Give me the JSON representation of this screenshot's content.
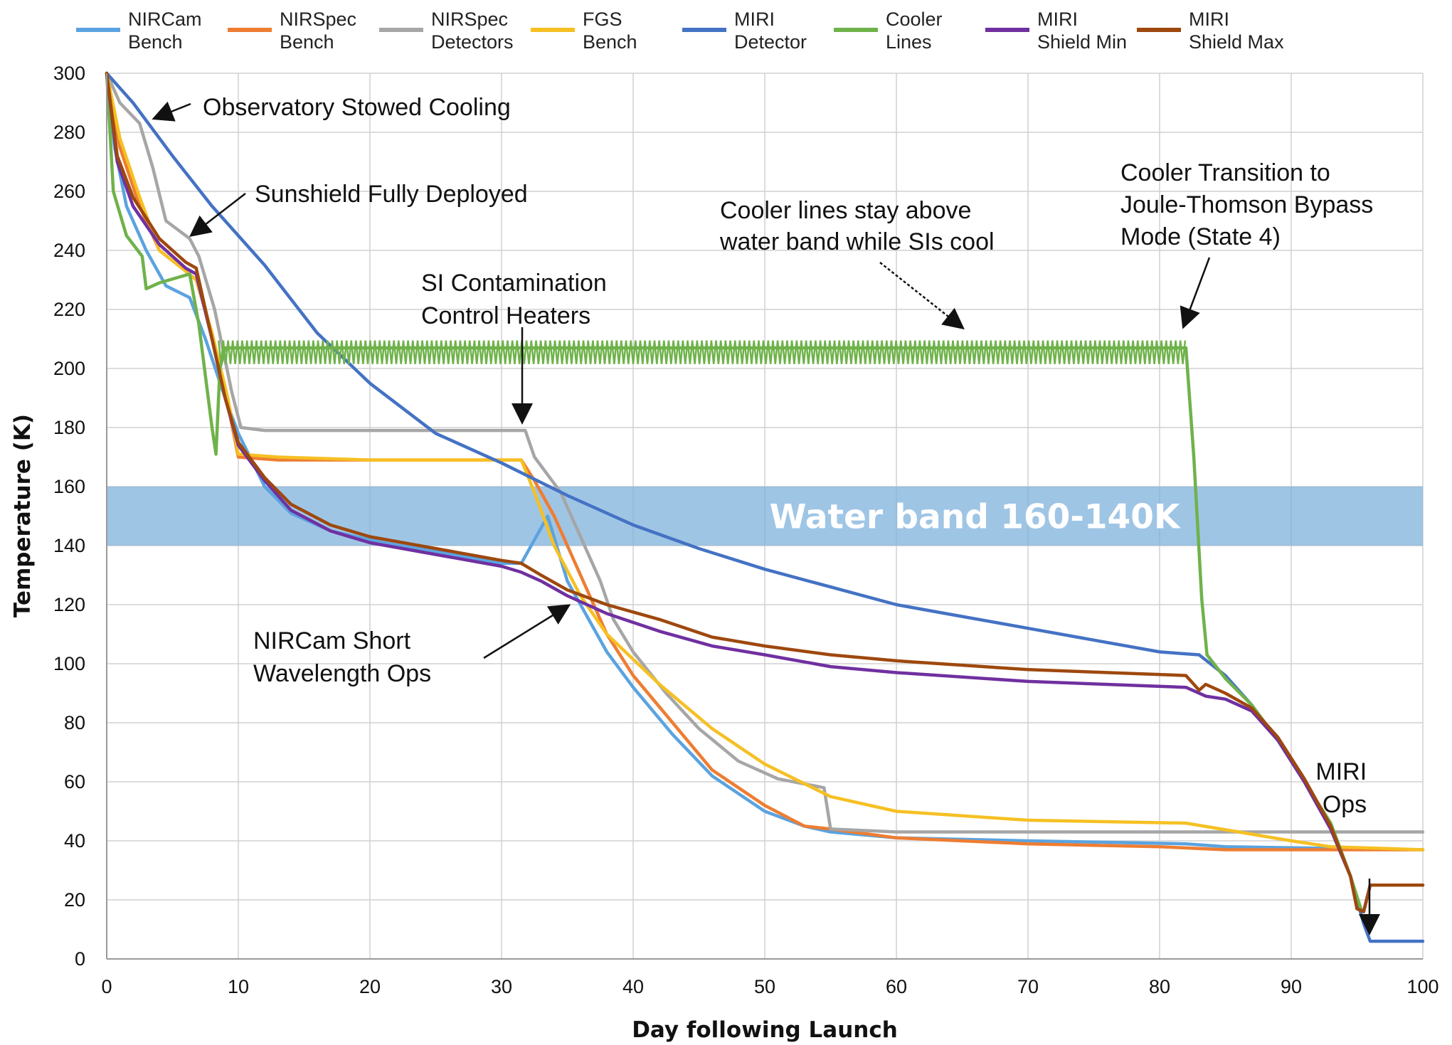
{
  "chart_data": {
    "type": "line",
    "xlabel": "Day following Launch",
    "ylabel": "Temperature (K)",
    "xlim": [
      0,
      100
    ],
    "ylim": [
      0,
      300
    ],
    "x_ticks": [
      0,
      10,
      20,
      30,
      40,
      50,
      60,
      70,
      80,
      90,
      100
    ],
    "y_ticks": [
      0,
      20,
      40,
      60,
      80,
      100,
      120,
      140,
      160,
      180,
      200,
      220,
      240,
      260,
      280,
      300
    ],
    "grid": true,
    "legend_position": "top",
    "band": {
      "y_low": 140,
      "y_high": 160,
      "label": "Water band 160-140K",
      "color": "#7fb1dc"
    },
    "series": [
      {
        "name_line1": "NIRCam",
        "name_line2": "Bench",
        "color": "#5ba3e0",
        "points": [
          [
            0,
            300
          ],
          [
            0.6,
            275
          ],
          [
            1.5,
            255
          ],
          [
            3,
            240
          ],
          [
            4.5,
            228
          ],
          [
            6.3,
            224
          ],
          [
            7.5,
            210
          ],
          [
            9,
            190
          ],
          [
            10,
            178
          ],
          [
            12,
            160
          ],
          [
            14,
            151
          ],
          [
            17,
            145
          ],
          [
            21,
            141
          ],
          [
            25,
            138
          ],
          [
            30,
            134
          ],
          [
            31.5,
            134
          ],
          [
            33.5,
            150
          ],
          [
            35,
            128
          ],
          [
            36,
            120
          ],
          [
            38,
            104
          ],
          [
            40,
            92
          ],
          [
            43,
            76
          ],
          [
            46,
            62
          ],
          [
            50,
            50
          ],
          [
            53,
            45
          ],
          [
            55,
            43
          ],
          [
            60,
            41
          ],
          [
            70,
            40
          ],
          [
            82,
            39
          ],
          [
            85,
            38
          ],
          [
            100,
            37
          ]
        ]
      },
      {
        "name_line1": "NIRSpec",
        "name_line2": "Bench",
        "color": "#ee7d32",
        "points": [
          [
            0,
            300
          ],
          [
            1,
            275
          ],
          [
            2.5,
            255
          ],
          [
            4,
            240
          ],
          [
            6,
            233
          ],
          [
            6.8,
            230
          ],
          [
            8,
            212
          ],
          [
            9.2,
            188
          ],
          [
            10,
            170
          ],
          [
            13,
            169
          ],
          [
            20,
            169
          ],
          [
            31.5,
            169
          ],
          [
            32.5,
            162
          ],
          [
            34,
            150
          ],
          [
            36,
            130
          ],
          [
            38,
            110
          ],
          [
            40,
            96
          ],
          [
            43,
            80
          ],
          [
            46,
            64
          ],
          [
            50,
            52
          ],
          [
            53,
            45
          ],
          [
            55,
            44
          ],
          [
            60,
            41
          ],
          [
            70,
            39
          ],
          [
            80,
            38
          ],
          [
            85,
            37
          ],
          [
            100,
            37
          ]
        ]
      },
      {
        "name_line1": "NIRSpec",
        "name_line2": "Detectors",
        "color": "#a6a6a6",
        "points": [
          [
            0,
            300
          ],
          [
            1,
            290
          ],
          [
            2.5,
            283
          ],
          [
            3.5,
            268
          ],
          [
            4.5,
            250
          ],
          [
            6.3,
            244
          ],
          [
            7,
            238
          ],
          [
            8.2,
            220
          ],
          [
            9.5,
            192
          ],
          [
            10.2,
            180
          ],
          [
            12,
            179
          ],
          [
            20,
            179
          ],
          [
            31.8,
            179
          ],
          [
            32.5,
            170
          ],
          [
            34.5,
            158
          ],
          [
            37.5,
            128
          ],
          [
            38.5,
            115
          ],
          [
            40,
            104
          ],
          [
            42.5,
            90
          ],
          [
            45,
            78
          ],
          [
            48,
            67
          ],
          [
            51,
            61
          ],
          [
            54.5,
            58
          ],
          [
            55,
            44
          ],
          [
            60,
            43
          ],
          [
            80,
            43
          ],
          [
            100,
            43
          ]
        ]
      },
      {
        "name_line1": "FGS",
        "name_line2": "Bench",
        "color": "#f6c023",
        "points": [
          [
            0,
            300
          ],
          [
            1,
            278
          ],
          [
            2.5,
            258
          ],
          [
            4,
            240
          ],
          [
            6,
            233
          ],
          [
            6.8,
            230
          ],
          [
            8,
            212
          ],
          [
            9.2,
            190
          ],
          [
            10,
            171
          ],
          [
            13,
            170
          ],
          [
            20,
            169
          ],
          [
            31.5,
            169
          ],
          [
            32.5,
            158
          ],
          [
            34,
            140
          ],
          [
            36,
            123
          ],
          [
            38,
            110
          ],
          [
            42,
            93
          ],
          [
            46,
            78
          ],
          [
            50,
            66
          ],
          [
            55,
            55
          ],
          [
            60,
            50
          ],
          [
            70,
            47
          ],
          [
            82,
            46
          ],
          [
            86,
            43
          ],
          [
            90,
            40
          ],
          [
            93,
            38
          ],
          [
            100,
            37
          ]
        ]
      },
      {
        "name_line1": "MIRI",
        "name_line2": "Detector",
        "color": "#4472c4",
        "points": [
          [
            0,
            300
          ],
          [
            2,
            290
          ],
          [
            5,
            272
          ],
          [
            8,
            255
          ],
          [
            12,
            235
          ],
          [
            16,
            212
          ],
          [
            20,
            195
          ],
          [
            25,
            178
          ],
          [
            30,
            168
          ],
          [
            35,
            157
          ],
          [
            40,
            147
          ],
          [
            45,
            139
          ],
          [
            50,
            132
          ],
          [
            55,
            126
          ],
          [
            60,
            120
          ],
          [
            65,
            116
          ],
          [
            70,
            112
          ],
          [
            75,
            108
          ],
          [
            80,
            104
          ],
          [
            83,
            103
          ],
          [
            85,
            96
          ],
          [
            87,
            86
          ],
          [
            89,
            74
          ],
          [
            91,
            60
          ],
          [
            93,
            44
          ],
          [
            94.5,
            28
          ],
          [
            95.5,
            12
          ],
          [
            96,
            6
          ],
          [
            100,
            6
          ]
        ]
      },
      {
        "name_line1": "Cooler",
        "name_line2": "Lines",
        "color": "#6fb24a",
        "points": [
          [
            0,
            300
          ],
          [
            0.5,
            260
          ],
          [
            1.5,
            245
          ],
          [
            2.7,
            238
          ],
          [
            3,
            227
          ],
          [
            4,
            229
          ],
          [
            6.3,
            232
          ],
          [
            7,
            215
          ],
          [
            8,
            180
          ],
          [
            8.3,
            171
          ],
          [
            8.6,
            200
          ],
          [
            9,
            207
          ],
          [
            82,
            207
          ],
          [
            82.6,
            170
          ],
          [
            83.2,
            122
          ],
          [
            83.6,
            103
          ],
          [
            85,
            95
          ],
          [
            87,
            86
          ],
          [
            89,
            74
          ],
          [
            91,
            60
          ],
          [
            93,
            46
          ],
          [
            94.5,
            28
          ],
          [
            95.3,
            17
          ]
        ]
      },
      {
        "name_line1": "MIRI",
        "name_line2": "Shield Min",
        "color": "#7030a0",
        "points": [
          [
            0,
            300
          ],
          [
            0.8,
            270
          ],
          [
            2,
            255
          ],
          [
            4,
            242
          ],
          [
            6,
            234
          ],
          [
            6.8,
            232
          ],
          [
            8,
            210
          ],
          [
            9,
            190
          ],
          [
            10,
            174
          ],
          [
            12,
            162
          ],
          [
            14,
            152
          ],
          [
            17,
            145
          ],
          [
            20,
            141
          ],
          [
            25,
            137
          ],
          [
            30,
            133
          ],
          [
            31.5,
            131
          ],
          [
            33,
            128
          ],
          [
            35,
            123
          ],
          [
            38,
            117
          ],
          [
            42,
            111
          ],
          [
            46,
            106
          ],
          [
            50,
            103
          ],
          [
            55,
            99
          ],
          [
            60,
            97
          ],
          [
            70,
            94
          ],
          [
            82,
            92
          ],
          [
            83.5,
            89
          ],
          [
            85,
            88
          ],
          [
            87,
            84
          ],
          [
            89,
            74
          ],
          [
            91,
            60
          ],
          [
            93,
            44
          ],
          [
            94.5,
            28
          ],
          [
            95,
            17
          ],
          [
            95.5,
            16
          ],
          [
            96,
            25
          ],
          [
            100,
            25
          ]
        ]
      },
      {
        "name_line1": "MIRI",
        "name_line2": "Shield Max",
        "color": "#9e480e",
        "points": [
          [
            0,
            300
          ],
          [
            0.8,
            272
          ],
          [
            2,
            258
          ],
          [
            4,
            244
          ],
          [
            6,
            236
          ],
          [
            6.8,
            234
          ],
          [
            8,
            210
          ],
          [
            9,
            190
          ],
          [
            10,
            175
          ],
          [
            12,
            163
          ],
          [
            14,
            154
          ],
          [
            17,
            147
          ],
          [
            20,
            143
          ],
          [
            25,
            139
          ],
          [
            30,
            135
          ],
          [
            31.5,
            134
          ],
          [
            33,
            130
          ],
          [
            35,
            125
          ],
          [
            38,
            120
          ],
          [
            42,
            115
          ],
          [
            46,
            109
          ],
          [
            50,
            106
          ],
          [
            55,
            103
          ],
          [
            60,
            101
          ],
          [
            70,
            98
          ],
          [
            82,
            96
          ],
          [
            83,
            91
          ],
          [
            83.5,
            93
          ],
          [
            85,
            90
          ],
          [
            87,
            85
          ],
          [
            89,
            75
          ],
          [
            91,
            61
          ],
          [
            93,
            45
          ],
          [
            94.5,
            28
          ],
          [
            95,
            17
          ],
          [
            95.5,
            16
          ],
          [
            96,
            25
          ],
          [
            100,
            25
          ]
        ]
      }
    ],
    "annotations": [
      {
        "lines": [
          "Observatory Stowed Cooling"
        ]
      },
      {
        "lines": [
          "Sunshield Fully Deployed"
        ]
      },
      {
        "lines": [
          "SI Contamination",
          "Control Heaters"
        ]
      },
      {
        "lines": [
          "Cooler lines stay above",
          "water band while SIs cool"
        ]
      },
      {
        "lines": [
          "Cooler Transition to",
          "Joule-Thomson Bypass",
          "Mode (State 4)"
        ]
      },
      {
        "lines": [
          "NIRCam Short",
          "Wavelength Ops"
        ]
      },
      {
        "lines": [
          "MIRI",
          "Ops"
        ]
      }
    ]
  }
}
